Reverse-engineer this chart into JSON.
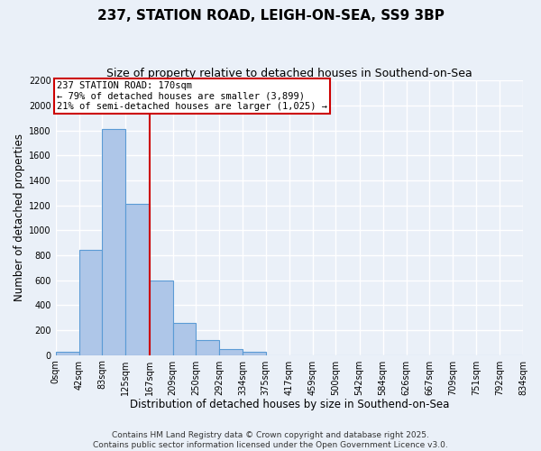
{
  "title": "237, STATION ROAD, LEIGH-ON-SEA, SS9 3BP",
  "subtitle": "Size of property relative to detached houses in Southend-on-Sea",
  "xlabel": "Distribution of detached houses by size in Southend-on-Sea",
  "ylabel": "Number of detached properties",
  "bin_edges": [
    0,
    42,
    83,
    125,
    167,
    209,
    250,
    292,
    334,
    375,
    417,
    459,
    500,
    542,
    584,
    626,
    667,
    709,
    751,
    792,
    834
  ],
  "bin_counts": [
    25,
    840,
    1810,
    1210,
    600,
    255,
    120,
    50,
    25,
    0,
    0,
    0,
    0,
    0,
    0,
    0,
    0,
    0,
    0,
    0
  ],
  "bar_color": "#aec6e8",
  "bar_edge_color": "#5b9bd5",
  "vline_x": 167,
  "vline_color": "#cc0000",
  "annotation_text": "237 STATION ROAD: 170sqm\n← 79% of detached houses are smaller (3,899)\n21% of semi-detached houses are larger (1,025) →",
  "annotation_box_color": "#ffffff",
  "annotation_box_edge_color": "#cc0000",
  "ylim": [
    0,
    2200
  ],
  "yticks": [
    0,
    200,
    400,
    600,
    800,
    1000,
    1200,
    1400,
    1600,
    1800,
    2000,
    2200
  ],
  "tick_labels": [
    "0sqm",
    "42sqm",
    "83sqm",
    "125sqm",
    "167sqm",
    "209sqm",
    "250sqm",
    "292sqm",
    "334sqm",
    "375sqm",
    "417sqm",
    "459sqm",
    "500sqm",
    "542sqm",
    "584sqm",
    "626sqm",
    "667sqm",
    "709sqm",
    "751sqm",
    "792sqm",
    "834sqm"
  ],
  "footer_line1": "Contains HM Land Registry data © Crown copyright and database right 2025.",
  "footer_line2": "Contains public sector information licensed under the Open Government Licence v3.0.",
  "bg_color": "#eaf0f8",
  "grid_color": "#ffffff",
  "title_fontsize": 11,
  "subtitle_fontsize": 9,
  "axis_label_fontsize": 8.5,
  "tick_fontsize": 7,
  "annot_fontsize": 7.5,
  "footer_fontsize": 6.5
}
